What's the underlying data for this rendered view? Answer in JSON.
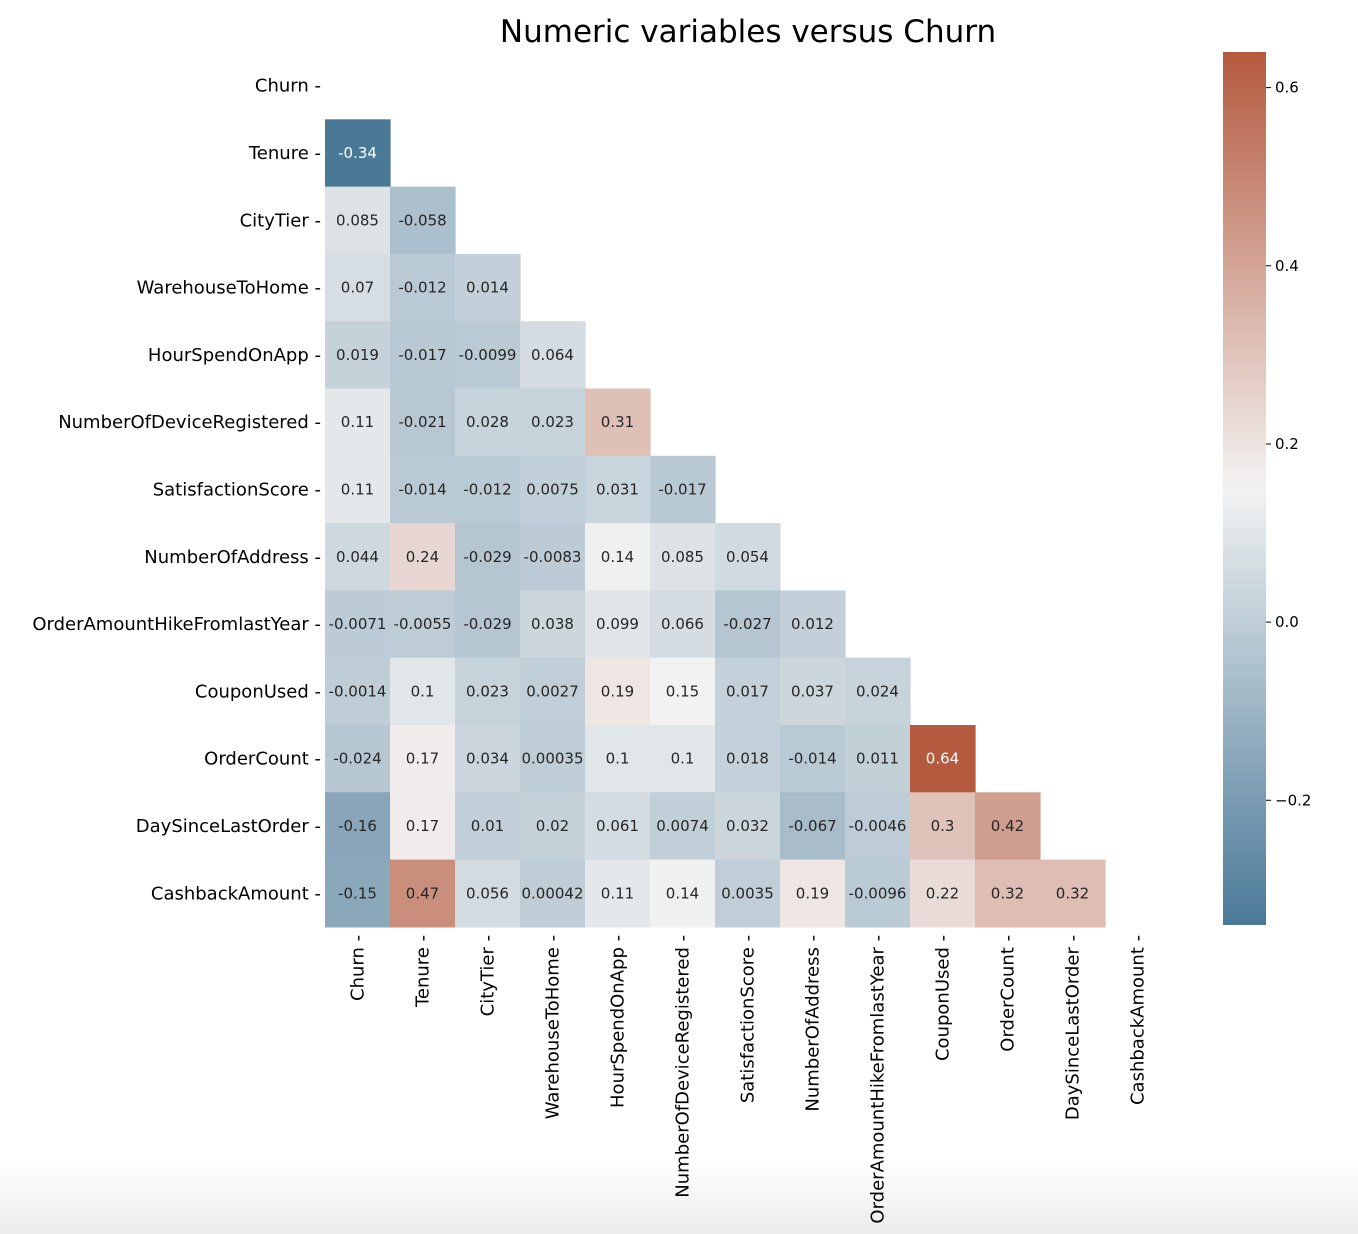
{
  "chart_data": {
    "type": "heatmap",
    "title": "Numeric variables versus Churn",
    "variables": [
      "Churn",
      "Tenure",
      "CityTier",
      "WarehouseToHome",
      "HourSpendOnApp",
      "NumberOfDeviceRegistered",
      "SatisfactionScore",
      "NumberOfAddress",
      "OrderAmountHikeFromlastYear",
      "CouponUsed",
      "OrderCount",
      "DaySinceLastOrder",
      "CashbackAmount"
    ],
    "mask": "upper-triangle-including-diagonal",
    "rows": [
      {
        "label": "Churn",
        "values": []
      },
      {
        "label": "Tenure",
        "values": [
          -0.34
        ]
      },
      {
        "label": "CityTier",
        "values": [
          0.085,
          -0.058
        ]
      },
      {
        "label": "WarehouseToHome",
        "values": [
          0.07,
          -0.012,
          0.014
        ]
      },
      {
        "label": "HourSpendOnApp",
        "values": [
          0.019,
          -0.017,
          -0.0099,
          0.064
        ]
      },
      {
        "label": "NumberOfDeviceRegistered",
        "values": [
          0.11,
          -0.021,
          0.028,
          0.023,
          0.31
        ]
      },
      {
        "label": "SatisfactionScore",
        "values": [
          0.11,
          -0.014,
          -0.012,
          0.0075,
          0.031,
          -0.017
        ]
      },
      {
        "label": "NumberOfAddress",
        "values": [
          0.044,
          0.24,
          -0.029,
          -0.0083,
          0.14,
          0.085,
          0.054
        ]
      },
      {
        "label": "OrderAmountHikeFromlastYear",
        "values": [
          -0.0071,
          -0.0055,
          -0.029,
          0.038,
          0.099,
          0.066,
          -0.027,
          0.012
        ]
      },
      {
        "label": "CouponUsed",
        "values": [
          -0.0014,
          0.1,
          0.023,
          0.0027,
          0.19,
          0.15,
          0.017,
          0.037,
          0.024
        ]
      },
      {
        "label": "OrderCount",
        "values": [
          -0.024,
          0.17,
          0.034,
          0.00035,
          0.1,
          0.1,
          0.018,
          -0.014,
          0.011,
          0.64
        ]
      },
      {
        "label": "DaySinceLastOrder",
        "values": [
          -0.16,
          0.17,
          0.01,
          0.02,
          0.061,
          0.0074,
          0.032,
          -0.067,
          -0.0046,
          0.3,
          0.42
        ]
      },
      {
        "label": "CashbackAmount",
        "values": [
          -0.15,
          0.47,
          0.056,
          0.00042,
          0.11,
          0.14,
          0.0035,
          0.19,
          -0.0096,
          0.22,
          0.32,
          0.32
        ]
      }
    ],
    "colorbar": {
      "range": [
        -0.34,
        0.64
      ],
      "ticks": [
        -0.2,
        0.0,
        0.2,
        0.4,
        0.6
      ],
      "tick_labels": [
        "−0.2",
        "0.0",
        "0.2",
        "0.4",
        "0.6"
      ]
    },
    "colors": {
      "low": "#4a7998",
      "mid": "#f2f2f2",
      "high": "#b55a3e"
    },
    "legend_position": "right"
  }
}
